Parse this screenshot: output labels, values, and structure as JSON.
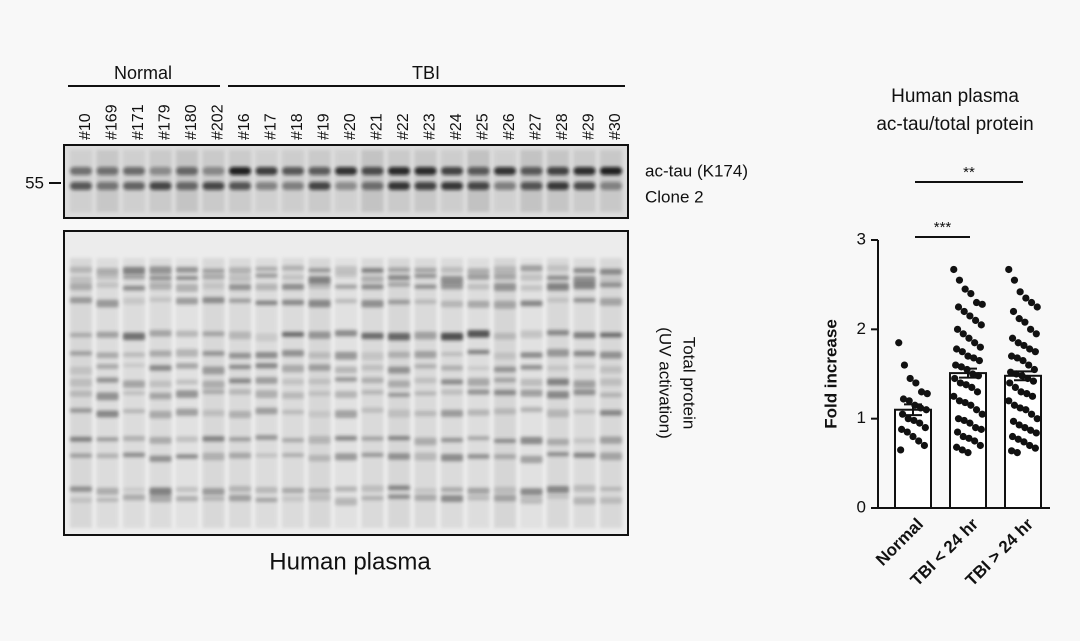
{
  "blot": {
    "groups": [
      "Normal",
      "TBI"
    ],
    "lanes": [
      "#10",
      "#169",
      "#171",
      "#179",
      "#180",
      "#202",
      "#16",
      "#17",
      "#18",
      "#19",
      "#20",
      "#21",
      "#22",
      "#23",
      "#24",
      "#25",
      "#26",
      "#27",
      "#28",
      "#29",
      "#30"
    ],
    "marker": "55",
    "top_labels": [
      "ac-tau (K174)",
      "Clone 2"
    ],
    "bottom_labels": [
      "Total protein",
      "(UV activation)"
    ],
    "caption": "Human plasma"
  },
  "chart_data": {
    "type": "bar",
    "title": [
      "Human plasma",
      "ac-tau/total protein"
    ],
    "ylabel": "Fold increase",
    "categories": [
      "Normal",
      "TBI < 24 hr",
      "TBI > 24 hr"
    ],
    "values": [
      1.1,
      1.51,
      1.48
    ],
    "errors": [
      0.06,
      0.05,
      0.05
    ],
    "ylim": [
      0,
      3
    ],
    "yticks": [
      0,
      1,
      2,
      3
    ],
    "annotations": [
      "***",
      "**"
    ],
    "color": "#ffffff",
    "points": [
      [
        1.85,
        1.6,
        1.45,
        1.4,
        1.3,
        1.28,
        1.22,
        1.2,
        1.15,
        1.12,
        1.1,
        1.05,
        1.0,
        0.98,
        0.95,
        0.9,
        0.88,
        0.85,
        0.8,
        0.75,
        0.7,
        0.65
      ],
      [
        2.67,
        2.55,
        2.45,
        2.4,
        2.3,
        2.28,
        2.25,
        2.2,
        2.15,
        2.1,
        2.05,
        2.0,
        1.95,
        1.9,
        1.85,
        1.8,
        1.78,
        1.75,
        1.7,
        1.68,
        1.65,
        1.6,
        1.58,
        1.55,
        1.5,
        1.48,
        1.45,
        1.4,
        1.38,
        1.35,
        1.3,
        1.25,
        1.2,
        1.18,
        1.15,
        1.1,
        1.05,
        1.0,
        0.98,
        0.95,
        0.9,
        0.88,
        0.85,
        0.8,
        0.78,
        0.75,
        0.7,
        0.68,
        0.65,
        0.62
      ],
      [
        2.67,
        2.55,
        2.42,
        2.35,
        2.3,
        2.25,
        2.2,
        2.12,
        2.08,
        2.0,
        1.95,
        1.9,
        1.85,
        1.82,
        1.78,
        1.75,
        1.7,
        1.68,
        1.65,
        1.6,
        1.55,
        1.52,
        1.5,
        1.48,
        1.45,
        1.42,
        1.4,
        1.35,
        1.3,
        1.28,
        1.25,
        1.2,
        1.15,
        1.12,
        1.1,
        1.05,
        1.0,
        0.97,
        0.93,
        0.9,
        0.87,
        0.84,
        0.8,
        0.77,
        0.74,
        0.7,
        0.67,
        0.64,
        0.62
      ]
    ]
  }
}
